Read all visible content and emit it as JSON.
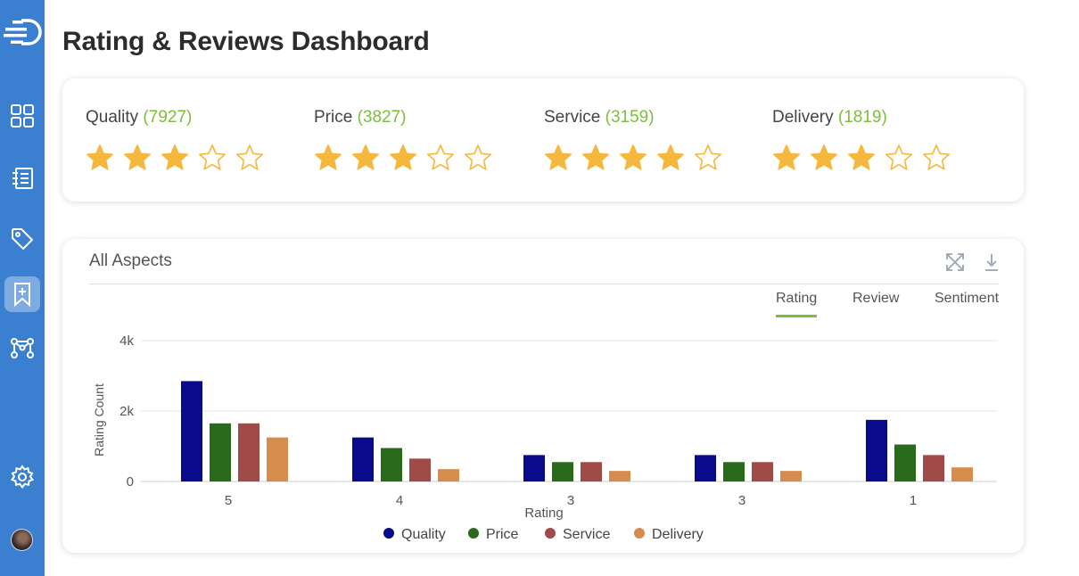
{
  "page": {
    "title": "Rating & Reviews Dashboard"
  },
  "sidebar": {
    "items": [
      {
        "icon": "dashboard-grid-icon",
        "active": false
      },
      {
        "icon": "catalog-icon",
        "active": false
      },
      {
        "icon": "tag-icon",
        "active": false
      },
      {
        "icon": "bookmark-plus-icon",
        "active": true
      },
      {
        "icon": "network-icon",
        "active": false
      }
    ],
    "settings_icon": "gear-icon",
    "avatar": "user-avatar"
  },
  "summary": {
    "aspects": [
      {
        "label": "Quality",
        "count": "(7927)",
        "rating": 3
      },
      {
        "label": "Price",
        "count": "(3827)",
        "rating": 3
      },
      {
        "label": "Service",
        "count": "(3159)",
        "rating": 4
      },
      {
        "label": "Delivery",
        "count": "(1819)",
        "rating": 3
      }
    ],
    "max_stars": 5,
    "star_color": "#f6b83c"
  },
  "chart_card": {
    "title": "All Aspects",
    "tabs": [
      {
        "label": "Rating",
        "active": true
      },
      {
        "label": "Review",
        "active": false
      },
      {
        "label": "Sentiment",
        "active": false
      }
    ]
  },
  "chart_data": {
    "type": "bar",
    "categories": [
      "5",
      "4",
      "3",
      "3",
      "1"
    ],
    "series": [
      {
        "name": "Quality",
        "color": "#0a0a8c",
        "values": [
          2850,
          1250,
          750,
          750,
          1750
        ]
      },
      {
        "name": "Price",
        "color": "#2a6a1c",
        "values": [
          1650,
          950,
          550,
          550,
          1050
        ]
      },
      {
        "name": "Service",
        "color": "#a04b48",
        "values": [
          1650,
          650,
          550,
          550,
          750
        ]
      },
      {
        "name": "Delivery",
        "color": "#d58c4c",
        "values": [
          1250,
          350,
          300,
          300,
          400
        ]
      }
    ],
    "xlabel": "Rating",
    "ylabel": "Rating Count",
    "yticks": [
      "0",
      "2k",
      "4k"
    ],
    "ytick_values": [
      0,
      2000,
      4000
    ],
    "ylim": [
      0,
      4000
    ],
    "grid": true,
    "legend_position": "bottom"
  }
}
